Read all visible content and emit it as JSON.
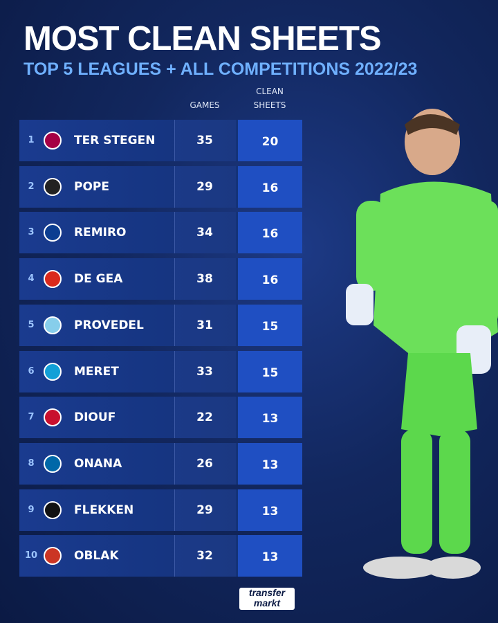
{
  "header": {
    "title": "MOST CLEAN SHEETS",
    "subtitle": "TOP 5 LEAGUES + ALL COMPETITIONS 2022/23"
  },
  "table": {
    "columns": [
      "GAMES",
      "CLEAN SHEETS"
    ],
    "rows": [
      [
        1,
        "TER STEGEN",
        35,
        20
      ],
      [
        2,
        "POPE",
        29,
        16
      ],
      [
        3,
        "REMIRO",
        34,
        16
      ],
      [
        4,
        "DE GEA",
        38,
        16
      ],
      [
        5,
        "PROVEDEL",
        31,
        15
      ],
      [
        6,
        "MERET",
        33,
        15
      ],
      [
        7,
        "DIOUF",
        22,
        13
      ],
      [
        8,
        "ONANA",
        26,
        13
      ],
      [
        9,
        "FLEKKEN",
        29,
        13
      ],
      [
        10,
        "OBLAK",
        32,
        13
      ]
    ]
  },
  "footer": {
    "logo": [
      "transfer",
      "markt"
    ]
  }
}
